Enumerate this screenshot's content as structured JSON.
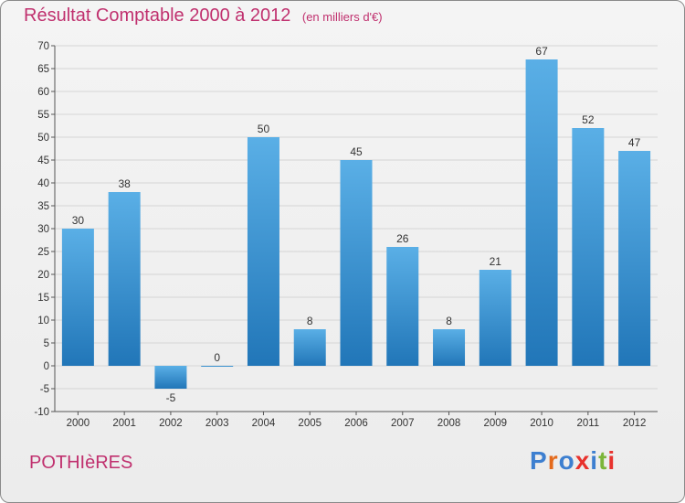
{
  "chart_data": {
    "type": "bar",
    "title": "Résultat Comptable 2000 à 2012",
    "subtitle": "(en milliers d'€)",
    "categories": [
      "2000",
      "2001",
      "2002",
      "2003",
      "2004",
      "2005",
      "2006",
      "2007",
      "2008",
      "2009",
      "2010",
      "2011",
      "2012"
    ],
    "values": [
      30,
      38,
      -5,
      0,
      50,
      8,
      45,
      26,
      8,
      21,
      67,
      52,
      47
    ],
    "data_labels": [
      "30",
      "38",
      "-5",
      "0",
      "50",
      "8",
      "45",
      "26",
      "8",
      "21",
      "67",
      "52",
      "47"
    ],
    "xlabel": "",
    "ylabel": "",
    "ylim": [
      -10,
      70
    ],
    "yticks": [
      -10,
      -5,
      0,
      5,
      10,
      15,
      20,
      25,
      30,
      35,
      40,
      45,
      50,
      55,
      60,
      65,
      70
    ],
    "grid": true,
    "legend": "none",
    "colors": {
      "bar_top": "#5aafe6",
      "bar_bottom": "#2176b8",
      "grid": "#d5d5d5",
      "title": "#c0306e"
    }
  },
  "footer": {
    "commune": "POTHIèRES",
    "logo": "Proxiti",
    "logo_colors": [
      "#3d7fd0",
      "#e46a1c",
      "#3d7fd0",
      "#e8322d",
      "#3d7fd0",
      "#7cb53a",
      "#e8322d"
    ]
  }
}
